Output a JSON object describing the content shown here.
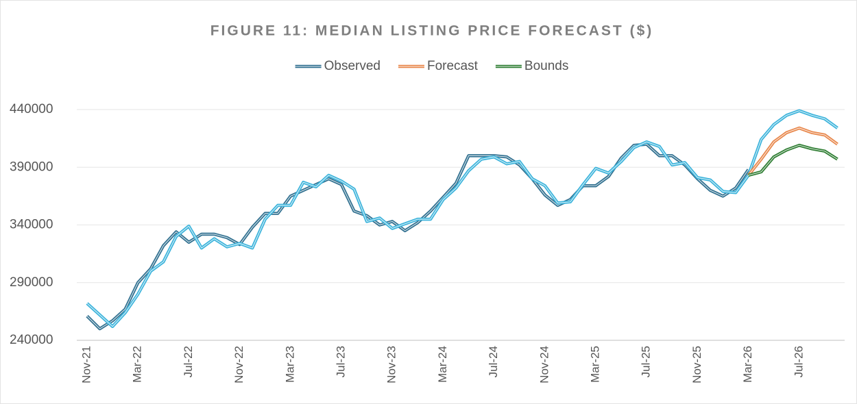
{
  "chart_data": {
    "type": "line",
    "title": "FIGURE 11: MEDIAN LISTING PRICE FORECAST ($)",
    "categories": [
      "Nov-21",
      null,
      null,
      null,
      "Mar-22",
      null,
      null,
      null,
      "Jul-22",
      null,
      null,
      null,
      "Nov-22",
      null,
      null,
      null,
      "Mar-23",
      null,
      null,
      null,
      "Jul-23",
      null,
      null,
      null,
      "Nov-23",
      null,
      null,
      null,
      "Mar-24",
      null,
      null,
      null,
      "Jul-24",
      null,
      null,
      null,
      "Nov-24",
      null,
      null,
      null,
      "Mar-25",
      null,
      null,
      null,
      "Jul-25",
      null,
      null,
      null,
      "Nov-25",
      null,
      null,
      null,
      "Mar-26",
      null,
      null,
      null,
      "Jul-26",
      null,
      null,
      null
    ],
    "series": [
      {
        "name": "Observed",
        "color": "#2f6f8f",
        "values": [
          261000,
          250000,
          257000,
          267000,
          290000,
          302000,
          322000,
          334000,
          325000,
          332000,
          332000,
          329000,
          323000,
          338000,
          350000,
          350000,
          365000,
          370000,
          375000,
          380000,
          375000,
          352000,
          348000,
          340000,
          343000,
          335000,
          342000,
          352000,
          364000,
          376000,
          400000,
          400000,
          400000,
          399000,
          392000,
          380000,
          366000,
          357000,
          362000,
          374000,
          374000,
          382000,
          398000,
          409000,
          410000,
          400000,
          400000,
          392000,
          380000,
          370000,
          365000,
          372000,
          388000,
          null,
          null,
          null,
          null,
          null,
          null,
          null
        ]
      },
      {
        "color": "#3bb3db",
        "values": [
          272000,
          262000,
          252000,
          264000,
          280000,
          300000,
          308000,
          330000,
          339000,
          320000,
          328000,
          321000,
          324000,
          320000,
          345000,
          357000,
          357000,
          377000,
          373000,
          383000,
          378000,
          371000,
          343000,
          346000,
          337000,
          341000,
          345000,
          345000,
          362000,
          372000,
          387000,
          397000,
          399000,
          393000,
          395000,
          380000,
          374000,
          359000,
          360000,
          375000,
          389000,
          385000,
          395000,
          407000,
          412000,
          408000,
          392000,
          394000,
          381000,
          379000,
          369000,
          368000,
          383000,
          414000,
          427000,
          435000,
          439000,
          435000,
          432000,
          424000
        ]
      },
      {
        "name": "Forecast",
        "color": "#e8864a",
        "values": [
          null,
          null,
          null,
          null,
          null,
          null,
          null,
          null,
          null,
          null,
          null,
          null,
          null,
          null,
          null,
          null,
          null,
          null,
          null,
          null,
          null,
          null,
          null,
          null,
          null,
          null,
          null,
          null,
          null,
          null,
          null,
          null,
          null,
          null,
          null,
          null,
          null,
          null,
          null,
          null,
          null,
          null,
          null,
          null,
          null,
          null,
          null,
          null,
          null,
          null,
          null,
          null,
          383000,
          397000,
          412000,
          420000,
          424000,
          420000,
          418000,
          410000
        ]
      },
      {
        "name": "Bounds",
        "color": "#2e7d32",
        "values": [
          null,
          null,
          null,
          null,
          null,
          null,
          null,
          null,
          null,
          null,
          null,
          null,
          null,
          null,
          null,
          null,
          null,
          null,
          null,
          null,
          null,
          null,
          null,
          null,
          null,
          null,
          null,
          null,
          null,
          null,
          null,
          null,
          null,
          null,
          null,
          null,
          null,
          null,
          null,
          null,
          null,
          null,
          null,
          null,
          null,
          null,
          null,
          null,
          null,
          null,
          null,
          null,
          383000,
          386000,
          399000,
          405000,
          409000,
          406000,
          404000,
          397000
        ]
      }
    ],
    "ylim": [
      240000,
      440000
    ],
    "yticks": [
      240000,
      290000,
      340000,
      390000,
      440000
    ],
    "grid": true,
    "legend": "top"
  }
}
